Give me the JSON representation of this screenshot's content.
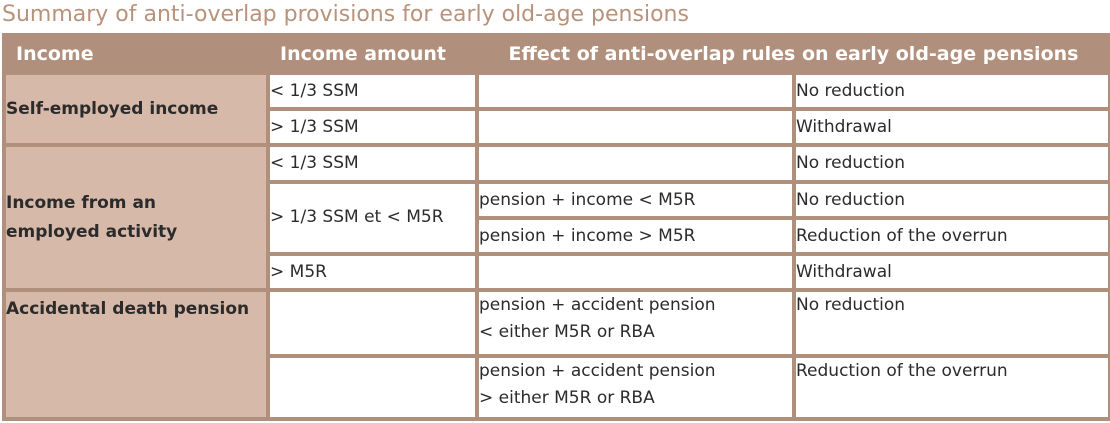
{
  "title": "Summary of anti-overlap provisions for early old-age pensions",
  "headers": {
    "income": "Income",
    "amount": "Income amount",
    "effect": "Effect of anti-overlap rules on early old-age pensions"
  },
  "groups": {
    "self_employed": {
      "label": "Self-employed income",
      "rows": [
        {
          "amount": "< 1/3 SSM",
          "condition": "",
          "result": "No reduction"
        },
        {
          "amount": "> 1/3 SSM",
          "condition": "",
          "result": "Withdrawal"
        }
      ]
    },
    "employed": {
      "label_line1": "Income from an",
      "label_line2": "employed activity",
      "rows": [
        {
          "amount": "< 1/3 SSM",
          "condition": "",
          "result": "No reduction"
        },
        {
          "amount": "> 1/3 SSM et < M5R",
          "condition": "pension + income < M5R",
          "result": "No reduction"
        },
        {
          "condition": "pension + income > M5R",
          "result": "Reduction of the overrun"
        },
        {
          "amount": "> M5R",
          "condition": "",
          "result": "Withdrawal"
        }
      ]
    },
    "accident": {
      "label": "Accidental death pension",
      "rows": [
        {
          "amount": "",
          "condition_line1": "pension + accident pension",
          "condition_line2": "< either M5R or RBA",
          "result": "No reduction"
        },
        {
          "amount": "",
          "condition_line1": "pension + accident pension",
          "condition_line2": "> either M5R or RBA",
          "result": "Reduction of the overrun"
        }
      ]
    }
  }
}
